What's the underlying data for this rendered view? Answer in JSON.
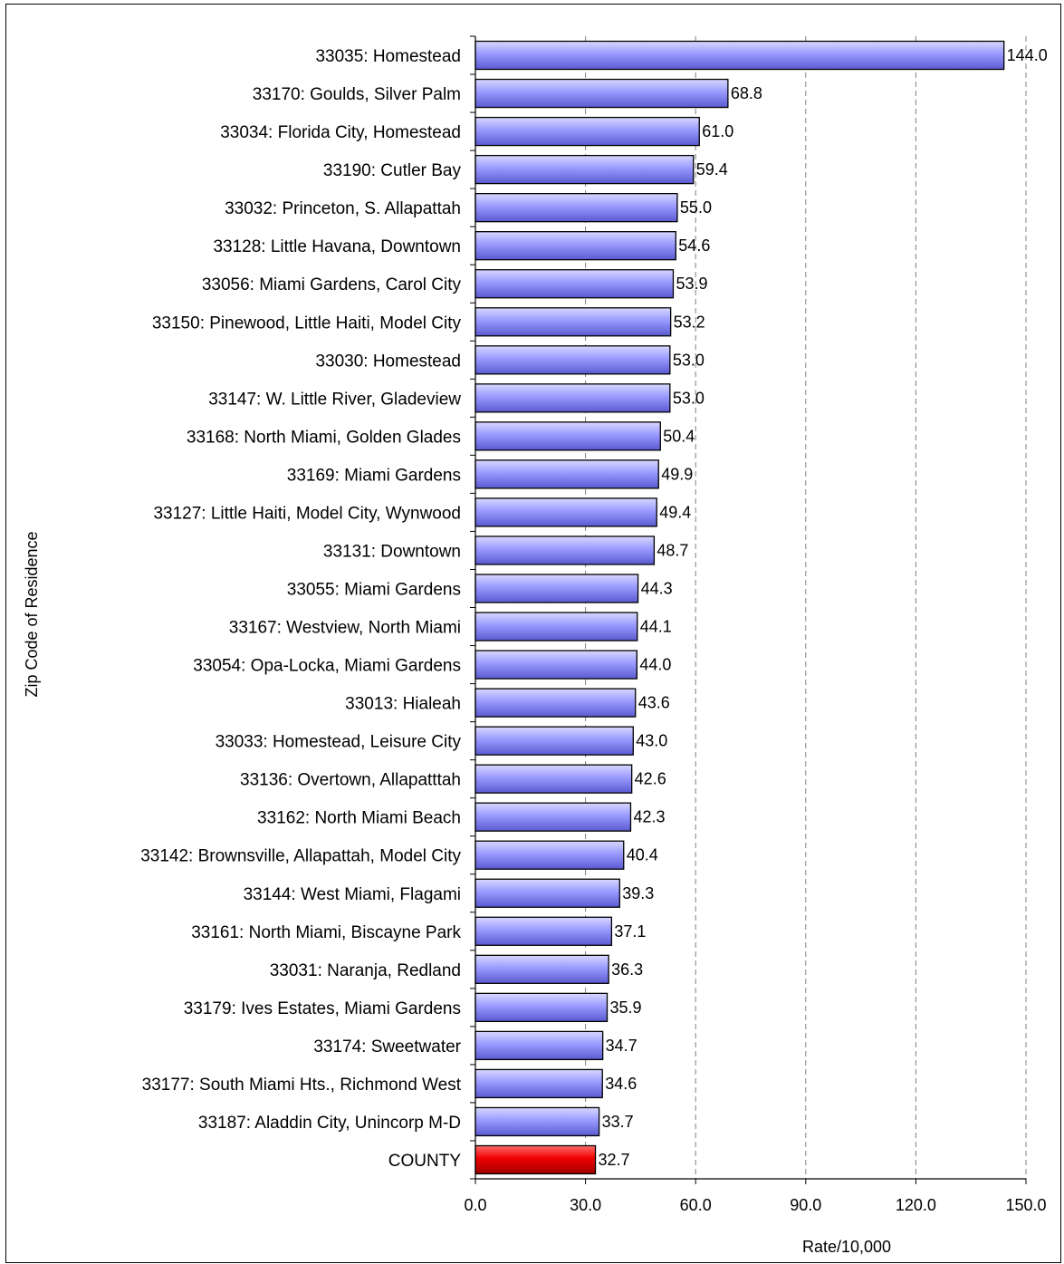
{
  "chart_data": {
    "type": "bar",
    "orientation": "horizontal",
    "title": "",
    "xlabel": "Rate/10,000",
    "ylabel": "Zip Code of Residence",
    "xlim": [
      0,
      150
    ],
    "x_ticks": [
      "0.0",
      "30.0",
      "60.0",
      "90.0",
      "120.0",
      "150.0"
    ],
    "grid": "vertical dashed",
    "colors": {
      "bar": "#9999ff",
      "highlight": "#ff0000"
    },
    "categories": [
      "33035:  Homestead",
      "33170:  Goulds, Silver Palm",
      "33034:  Florida City, Homestead",
      "33190:  Cutler Bay",
      "33032:  Princeton, S. Allapattah",
      "33128:  Little Havana, Downtown",
      "33056:  Miami Gardens, Carol City",
      "33150:  Pinewood, Little Haiti, Model City",
      "33030:  Homestead",
      "33147:  W. Little River, Gladeview",
      "33168:  North Miami, Golden Glades",
      "33169:  Miami Gardens",
      "33127:  Little Haiti, Model City, Wynwood",
      "33131:  Downtown",
      "33055:  Miami Gardens",
      "33167:  Westview, North Miami",
      "33054:  Opa-Locka, Miami Gardens",
      "33013:  Hialeah",
      "33033:  Homestead, Leisure City",
      "33136:  Overtown, Allapatttah",
      "33162:  North Miami Beach",
      "33142:  Brownsville, Allapattah, Model City",
      "33144:  West Miami, Flagami",
      "33161:  North Miami, Biscayne Park",
      "33031:  Naranja, Redland",
      "33179:  Ives Estates, Miami Gardens",
      "33174:  Sweetwater",
      "33177:  South Miami Hts., Richmond West",
      "33187:  Aladdin City, Unincorp M-D",
      "COUNTY"
    ],
    "values": [
      144.0,
      68.8,
      61.0,
      59.4,
      55.0,
      54.6,
      53.9,
      53.2,
      53.0,
      53.0,
      50.4,
      49.9,
      49.4,
      48.7,
      44.3,
      44.1,
      44.0,
      43.6,
      43.0,
      42.6,
      42.3,
      40.4,
      39.3,
      37.1,
      36.3,
      35.9,
      34.7,
      34.6,
      33.7,
      32.7
    ],
    "value_labels": [
      "144.0",
      "68.8",
      "61.0",
      "59.4",
      "55.0",
      "54.6",
      "53.9",
      "53.2",
      "53.0",
      "53.0",
      "50.4",
      "49.9",
      "49.4",
      "48.7",
      "44.3",
      "44.1",
      "44.0",
      "43.6",
      "43.0",
      "42.6",
      "42.3",
      "40.4",
      "39.3",
      "37.1",
      "36.3",
      "35.9",
      "34.7",
      "34.6",
      "33.7",
      "32.7"
    ],
    "highlight_category": "COUNTY"
  }
}
